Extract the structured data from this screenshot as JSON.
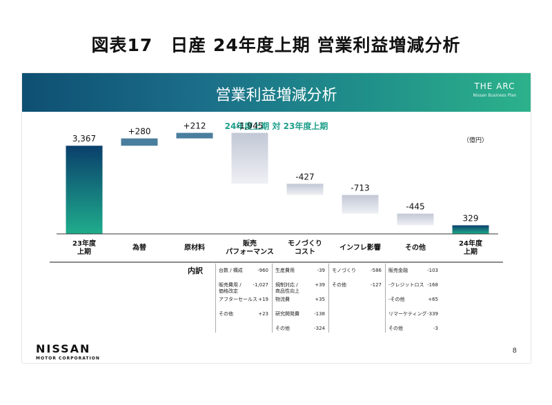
{
  "figure_title": "図表17　日産 24年度上期 営業利益増減分析",
  "slide": {
    "title": "営業利益増減分析",
    "logo": "THE ARC",
    "logo_sub": "Nissan Business Plan",
    "unit": "（億円）",
    "company": "NISSAN",
    "company_sub": "MOTOR CORPORATION",
    "page_number": "8"
  },
  "colors": {
    "header_start": "#0e4f72",
    "header_end": "#2cb28b",
    "positive_bar": "#4a7e9e",
    "negative_bar_top": "#c2c8d5",
    "endpoint_top": "#0a3f6c",
    "endpoint_bottom": "#1fad8c",
    "subtitle": "#1e9f8a"
  },
  "chart_data": {
    "type": "bar",
    "subtype": "waterfall",
    "title": "24年度上期 対 23年度上期",
    "categories": [
      "23年度\n上期",
      "為替",
      "原材料",
      "販売\nパフォーマンス",
      "モノづくり\nコスト",
      "インフレ影響",
      "その他",
      "24年度\n上期"
    ],
    "values": [
      3367,
      280,
      212,
      -1945,
      -427,
      -713,
      -445,
      329
    ],
    "value_labels": [
      "3,367",
      "+280",
      "+212",
      "-1,945",
      "-427",
      "-713",
      "-445",
      "329"
    ],
    "kinds": [
      "total",
      "delta",
      "delta",
      "delta",
      "delta",
      "delta",
      "delta",
      "total"
    ],
    "ylim": [
      0,
      3900
    ]
  },
  "breakdown": {
    "heading": "内訳",
    "columns": [
      {
        "category": "販売パフォーマンス",
        "items": [
          {
            "name": "台数 / 構成",
            "value": "-960"
          },
          {
            "name": "販売費用 /\n価格改定",
            "value": "-1,027"
          },
          {
            "name": "アフターセールス",
            "value": "+19"
          },
          {
            "name": "その他",
            "value": "+23"
          }
        ]
      },
      {
        "category": "モノづくりコスト",
        "items": [
          {
            "name": "生産費用",
            "value": "-39"
          },
          {
            "name": "規制対応 /\n商品性向上",
            "value": "+39"
          },
          {
            "name": "物流費",
            "value": "+35"
          },
          {
            "name": "研究開発費",
            "value": "-138"
          },
          {
            "name": "その他",
            "value": "-324"
          }
        ]
      },
      {
        "category": "インフレ影響",
        "items": [
          {
            "name": "モノづくり",
            "value": "-586"
          },
          {
            "name": "その他",
            "value": "-127"
          }
        ]
      },
      {
        "category": "その他",
        "items": [
          {
            "name": "販売金融",
            "value": "-103"
          },
          {
            "name": "-クレジットロス",
            "value": "-168"
          },
          {
            "name": "-その他",
            "value": "+65"
          },
          {
            "name": "リマーケティング",
            "value": "-339"
          },
          {
            "name": "その他",
            "value": "-3"
          }
        ]
      }
    ]
  }
}
